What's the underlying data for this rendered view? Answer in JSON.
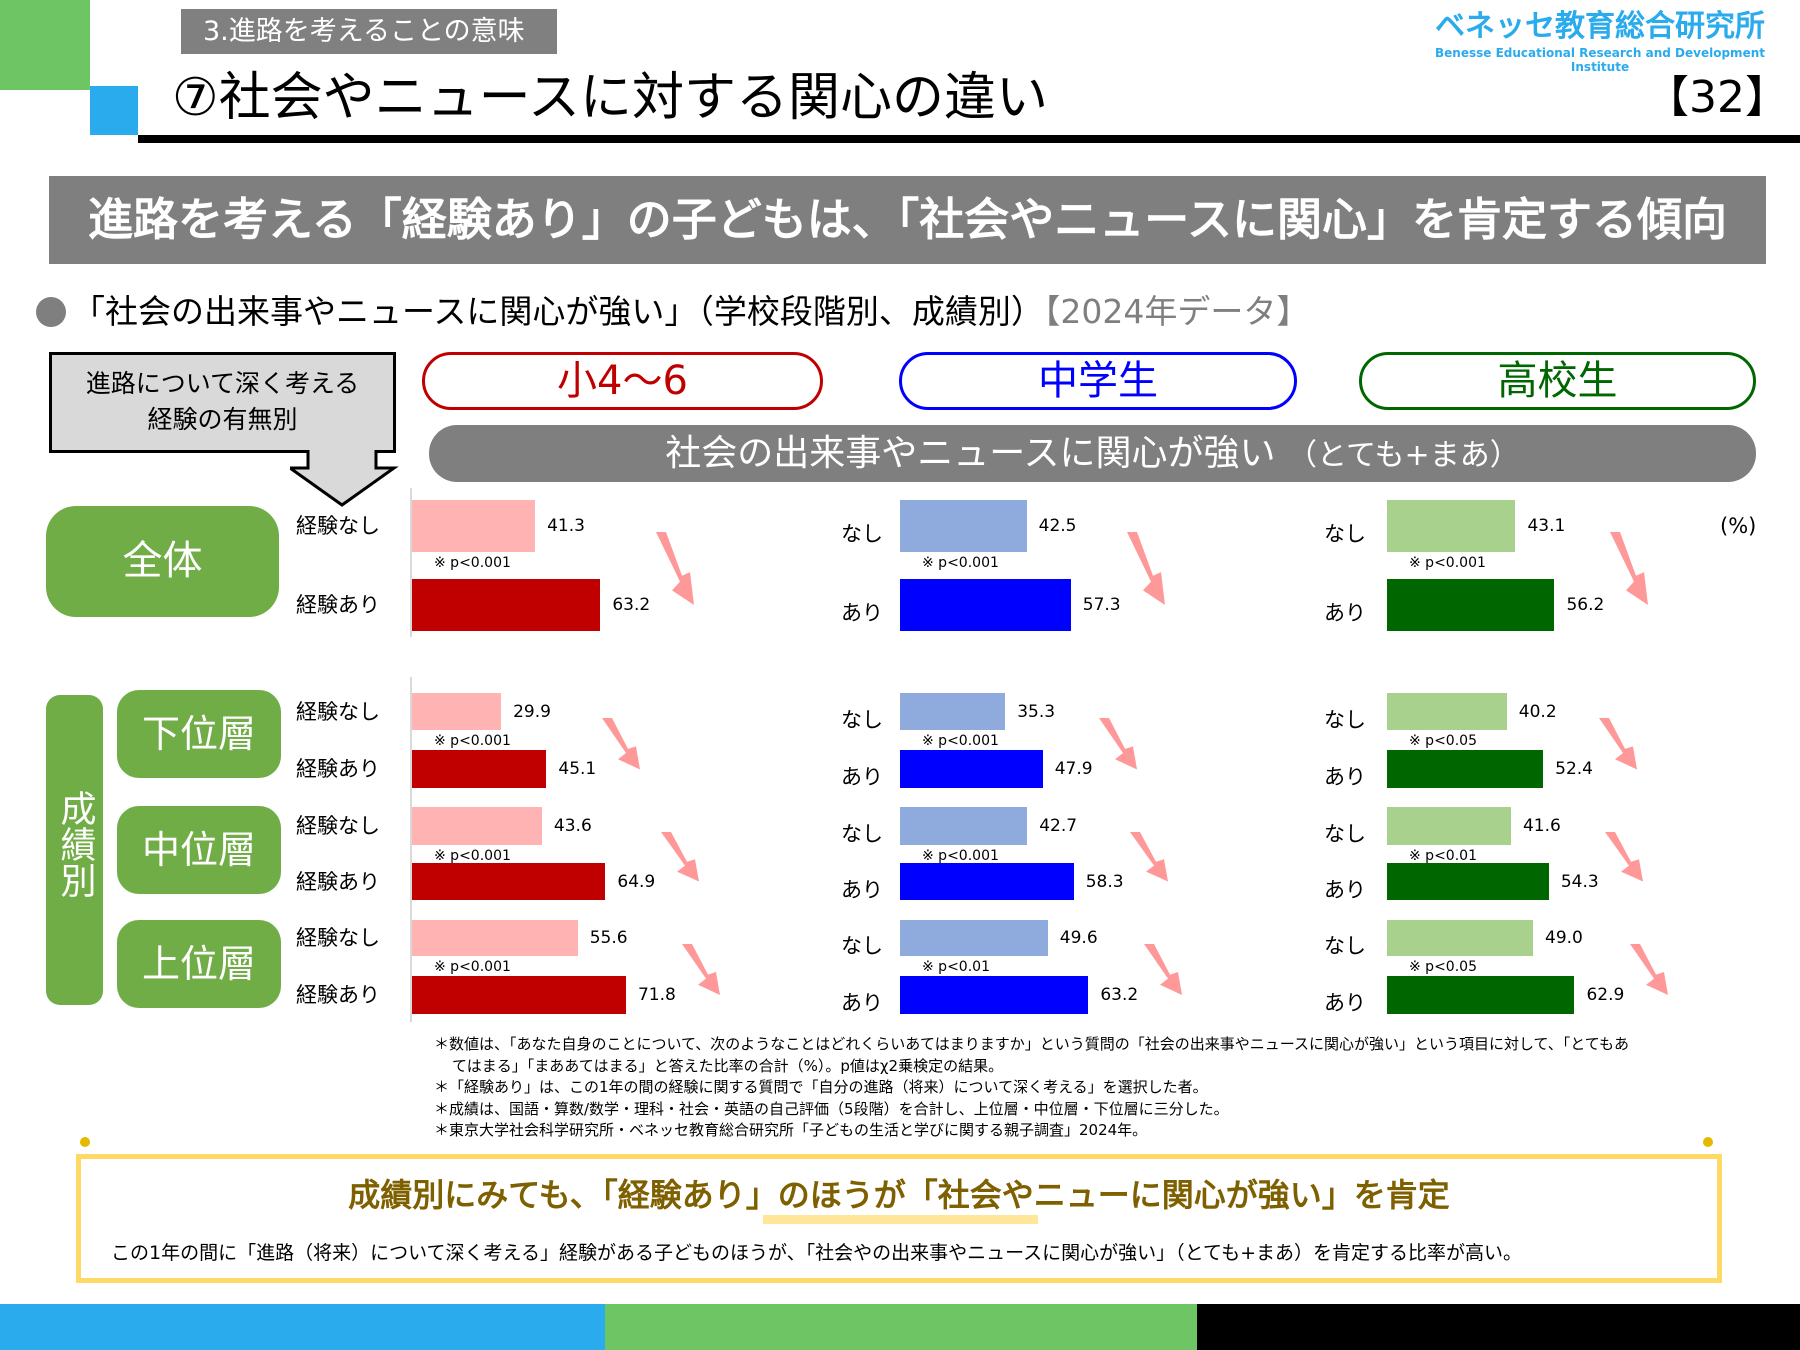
{
  "header": {
    "section_label": "3.進路を考えることの意味",
    "title": "⑦社会やニュースに対する関心の違い",
    "logo_jp": "ベネッセ教育総合研究所",
    "logo_en": "Benesse  Educational Research and Development Institute",
    "page_number": "【32】"
  },
  "banner": "進路を考える「経験あり」の子どもは、「社会やニュースに関心」を肯定する傾向",
  "subtitle": {
    "text": "「社会の出来事やニュースに関心が強い」（学校段階別、成績別）",
    "year": "【2024年データ】"
  },
  "callout": {
    "line1": "進路について深く考える",
    "line2": "経験の有無別"
  },
  "group_labels": {
    "overall": "全体",
    "grade": "成績別",
    "low": "下位層",
    "mid": "中位層",
    "high": "上位層"
  },
  "unit": "(%)",
  "chart_data": {
    "type": "bar",
    "title": "社会の出来事やニュースに関心が強い",
    "title_suffix": "（とても+まあ）",
    "groups": [
      "全体",
      "下位層",
      "中位層",
      "上位層"
    ],
    "columns": [
      {
        "name": "小4～6",
        "color_none": "#FFB3B3",
        "color_exp": "#C00000",
        "label_none": "経験なし",
        "label_exp": "経験あり",
        "none": [
          41.3,
          29.9,
          43.6,
          55.6
        ],
        "exp": [
          63.2,
          45.1,
          64.9,
          71.8
        ],
        "p": [
          "※ p<0.001",
          "※ p<0.001",
          "※ p<0.001",
          "※ p<0.001"
        ]
      },
      {
        "name": "中学生",
        "color_none": "#8FAADC",
        "color_exp": "#0000FF",
        "label_none": "なし",
        "label_exp": "あり",
        "none": [
          42.5,
          35.3,
          42.7,
          49.6
        ],
        "exp": [
          57.3,
          47.9,
          58.3,
          63.2
        ],
        "p": [
          "※ p<0.001",
          "※ p<0.001",
          "※ p<0.001",
          "※ p<0.01"
        ]
      },
      {
        "name": "高校生",
        "color_none": "#A9D18E",
        "color_exp": "#006600",
        "label_none": "なし",
        "label_exp": "あり",
        "none": [
          43.1,
          40.2,
          41.6,
          49.0
        ],
        "exp": [
          56.2,
          52.4,
          54.3,
          62.9
        ],
        "p": [
          "※ p<0.001",
          "※ p<0.05",
          "※ p<0.01",
          "※ p<0.05"
        ]
      }
    ],
    "xlim": [
      0,
      100
    ]
  },
  "notes": [
    "＊数値は、「あなた自身のことについて、次のようなことはどれくらいあてはまりますか」という質問の「社会の出来事やニュースに関心が強い」という項目に対して、「とてもあ",
    "てはまる」「まああてはまる」と答えた比率の合計（%）。p値はχ2乗検定の結果。",
    "＊「経験あり」は、この1年の間の経験に関する質問で「自分の進路（将来）について深く考える」を選択した者。",
    "＊成績は、国語・算数/数学・理科・社会・英語の自己評価（5段階）を合計し、上位層・中位層・下位層に三分した。",
    "＊東京大学社会科学研究所・ベネッセ教育総合研究所「子どもの生活と学びに関する親子調査」2024年。"
  ],
  "summary": {
    "title": "成績別にみても、「経験あり」のほうが「社会やニューに関心が強い」を肯定",
    "body": "この1年の間に「進路（将来）について深く考える」経験がある子どものほうが、「社会やの出来事やニュースに関心が強い」（とても+まあ）を肯定する比率が高い。"
  },
  "colors": {
    "green": "#6DC563",
    "blue": "#2AABEE",
    "gray": "#7F7F7F",
    "label_green": "#70AD47",
    "arrow": "#FF9999",
    "gold": "#FFD966"
  }
}
